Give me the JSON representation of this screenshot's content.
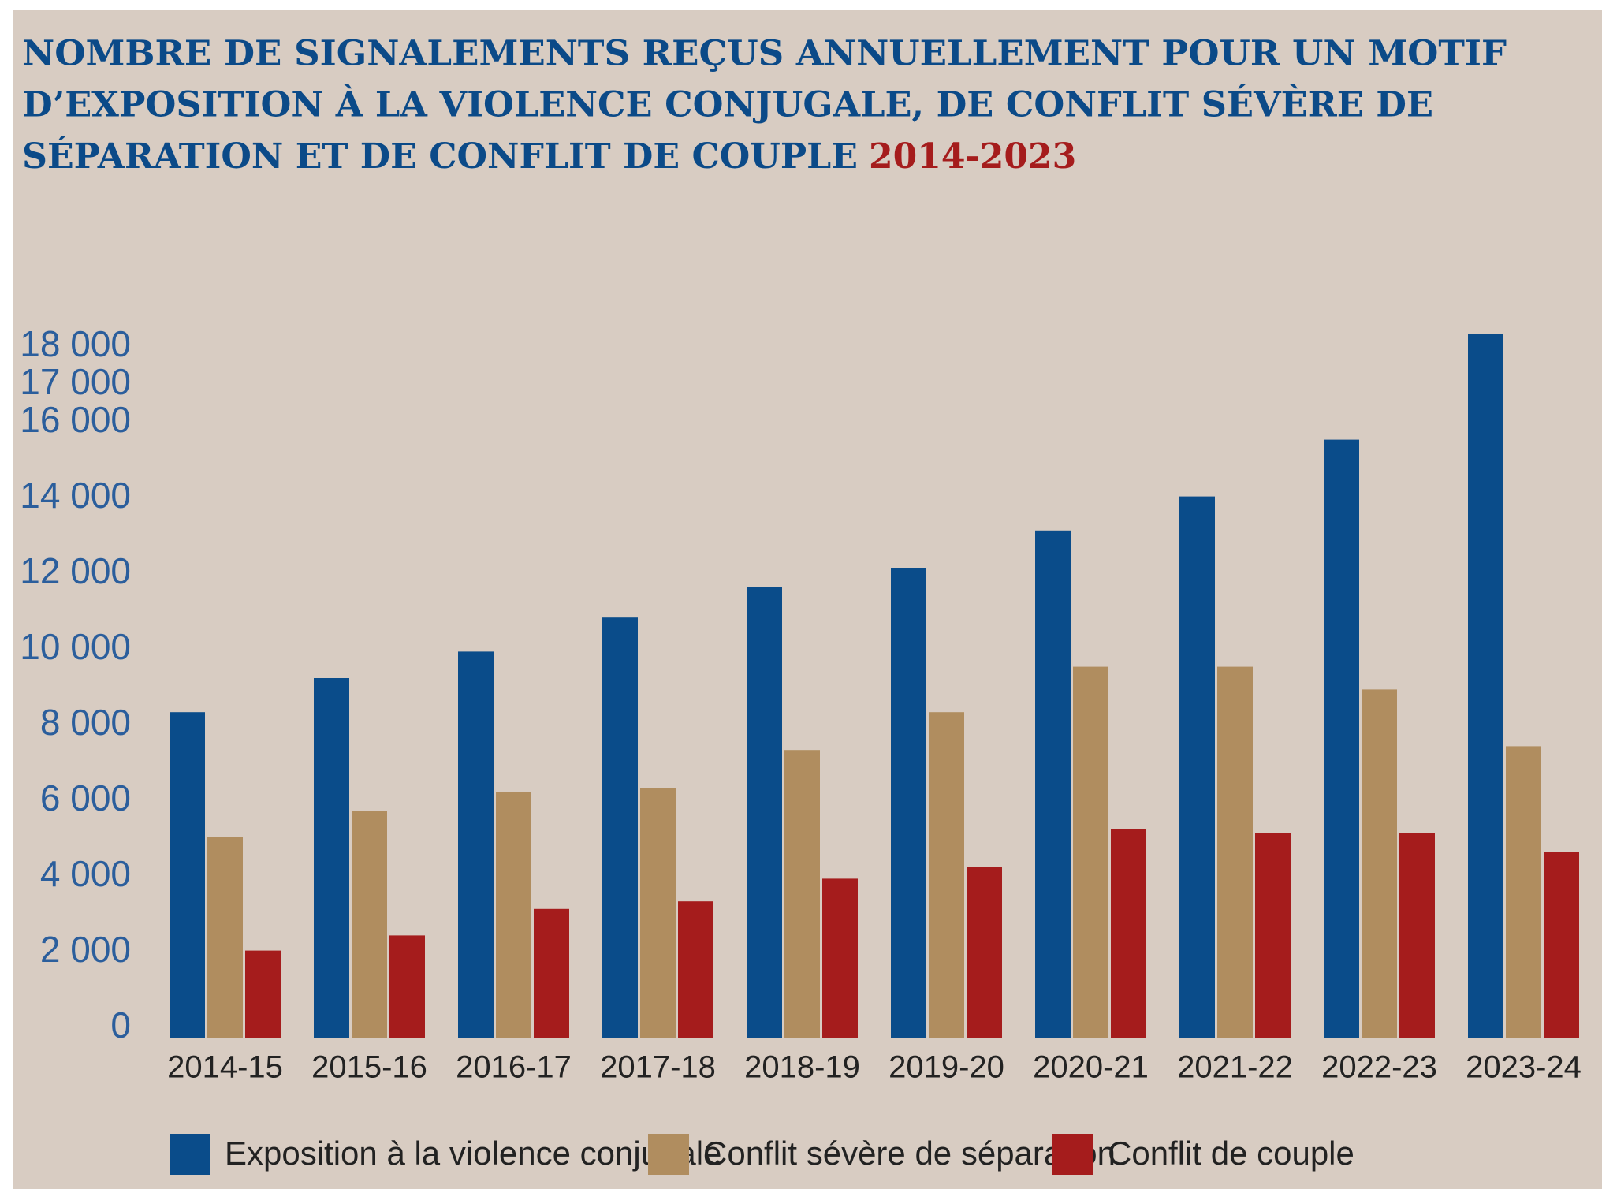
{
  "chart_data": {
    "type": "bar",
    "title": [
      "NOMBRE DE SIGNALEMENTS REÇUS ANNUELLEMENT POUR UN MOTIF",
      "D’EXPOSITION À LA VIOLENCE CONJUGALE, DE CONFLIT SÉVÈRE DE",
      "SÉPARATION ET DE CONFLIT DE COUPLE"
    ],
    "title_period": "2014-2023",
    "categories": [
      "2014-15",
      "2015-16",
      "2016-17",
      "2017-18",
      "2018-19",
      "2019-20",
      "2020-21",
      "2021-22",
      "2022-23",
      "2023-24"
    ],
    "series": [
      {
        "name": "Exposition à la violence conjugale",
        "color": "#0a4c8a",
        "values": [
          8600,
          9500,
          10200,
          11100,
          11900,
          12400,
          13400,
          14300,
          15800,
          18600
        ]
      },
      {
        "name": "Conflit sévère de séparation",
        "color": "#b08d5f",
        "values": [
          5300,
          6000,
          6500,
          6600,
          7600,
          8600,
          9800,
          9800,
          9200,
          7700
        ]
      },
      {
        "name": "Conflit de couple",
        "color": "#a51c1c",
        "values": [
          2300,
          2700,
          3400,
          3600,
          4200,
          4500,
          5500,
          5400,
          5400,
          4900
        ]
      }
    ],
    "ylim": [
      0,
      19000
    ],
    "yticks": [
      0,
      {
        "value": 2000,
        "label": "2 000"
      },
      {
        "value": 4000,
        "label": "4 000"
      },
      {
        "value": 6000,
        "label": "6 000"
      },
      {
        "value": 8000,
        "label": "8 000"
      },
      {
        "value": 10000,
        "label": "10 000"
      },
      {
        "value": 12000,
        "label": "12 000"
      },
      {
        "value": 14000,
        "label": "14 000"
      },
      {
        "value": 16000,
        "label": "16 000"
      },
      {
        "value": 17000,
        "label": "17 000"
      },
      {
        "value": 18000,
        "label": "18 000"
      }
    ],
    "legend": "bottom",
    "grid": false
  }
}
